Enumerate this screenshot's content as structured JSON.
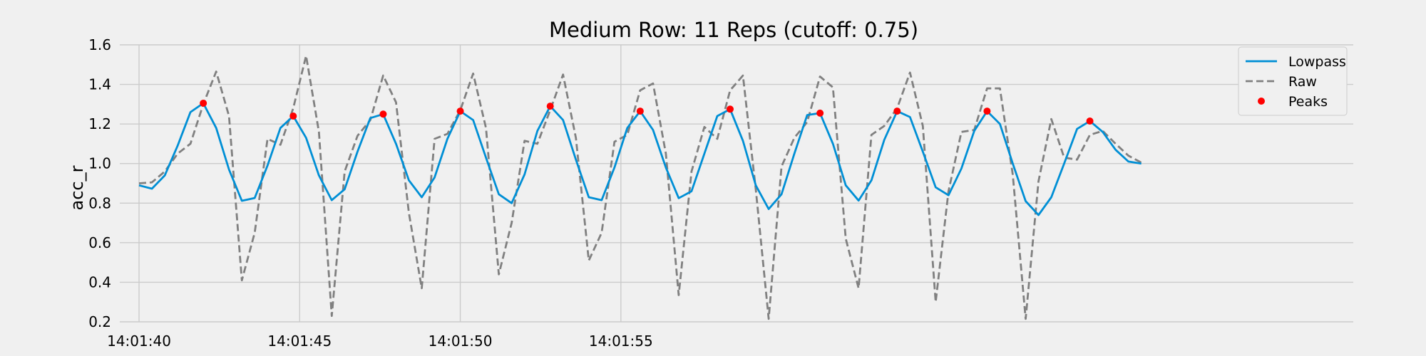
{
  "chart_data": {
    "type": "line",
    "title": "Medium Row: 11 Reps (cutoff: 0.75)",
    "xlabel": "",
    "ylabel": "acc_r",
    "x_ticks": [
      "14:01:40",
      "14:01:45",
      "14:01:50",
      "14:01:55"
    ],
    "y_ticks": [
      "0.2",
      "0.4",
      "0.6",
      "0.8",
      "1.0",
      "1.2",
      "1.4",
      "1.6"
    ],
    "xlim": [
      -0.6,
      37.8
    ],
    "ylim": [
      0.2,
      1.6
    ],
    "x_unit": "seconds after 14:01:40",
    "grid": true,
    "legend_position": "upper-right",
    "colors": {
      "background": "#f0f0f0",
      "grid": "#cbcbcb",
      "lowpass": "#008fd5",
      "raw": "#808080",
      "peaks": "#ff0000"
    },
    "series": [
      {
        "name": "Lowpass",
        "style": "solid",
        "points": [
          [
            0.0,
            0.89
          ],
          [
            0.4,
            0.873
          ],
          [
            0.8,
            0.94
          ],
          [
            1.2,
            1.09
          ],
          [
            1.6,
            1.26
          ],
          [
            2.0,
            1.305
          ],
          [
            2.4,
            1.18
          ],
          [
            2.8,
            0.97
          ],
          [
            3.2,
            0.812
          ],
          [
            3.6,
            0.826
          ],
          [
            4.0,
            0.99
          ],
          [
            4.4,
            1.18
          ],
          [
            4.8,
            1.24
          ],
          [
            5.2,
            1.13
          ],
          [
            5.6,
            0.94
          ],
          [
            6.0,
            0.815
          ],
          [
            6.4,
            0.87
          ],
          [
            6.8,
            1.06
          ],
          [
            7.2,
            1.23
          ],
          [
            7.6,
            1.25
          ],
          [
            8.0,
            1.1
          ],
          [
            8.4,
            0.915
          ],
          [
            8.8,
            0.83
          ],
          [
            9.2,
            0.93
          ],
          [
            9.6,
            1.125
          ],
          [
            10.0,
            1.265
          ],
          [
            10.4,
            1.22
          ],
          [
            10.8,
            1.03
          ],
          [
            11.2,
            0.845
          ],
          [
            11.6,
            0.8
          ],
          [
            12.0,
            0.945
          ],
          [
            12.4,
            1.165
          ],
          [
            12.8,
            1.29
          ],
          [
            13.2,
            1.22
          ],
          [
            13.6,
            1.02
          ],
          [
            14.0,
            0.83
          ],
          [
            14.4,
            0.815
          ],
          [
            14.8,
            0.98
          ],
          [
            15.2,
            1.18
          ],
          [
            15.6,
            1.265
          ],
          [
            16.0,
            1.17
          ],
          [
            16.4,
            0.98
          ],
          [
            16.8,
            0.825
          ],
          [
            17.2,
            0.86
          ],
          [
            17.6,
            1.05
          ],
          [
            18.0,
            1.24
          ],
          [
            18.4,
            1.275
          ],
          [
            18.8,
            1.115
          ],
          [
            19.2,
            0.89
          ],
          [
            19.6,
            0.77
          ],
          [
            20.0,
            0.845
          ],
          [
            20.4,
            1.05
          ],
          [
            20.8,
            1.245
          ],
          [
            21.2,
            1.255
          ],
          [
            21.6,
            1.1
          ],
          [
            22.0,
            0.89
          ],
          [
            22.4,
            0.813
          ],
          [
            22.8,
            0.915
          ],
          [
            23.2,
            1.12
          ],
          [
            23.6,
            1.265
          ],
          [
            24.0,
            1.235
          ],
          [
            24.4,
            1.06
          ],
          [
            24.8,
            0.88
          ],
          [
            25.2,
            0.84
          ],
          [
            25.6,
            0.975
          ],
          [
            26.0,
            1.165
          ],
          [
            26.4,
            1.265
          ],
          [
            26.8,
            1.2
          ],
          [
            27.2,
            1.0
          ],
          [
            27.6,
            0.81
          ],
          [
            28.0,
            0.74
          ],
          [
            28.4,
            0.83
          ],
          [
            28.8,
            1.0
          ],
          [
            29.2,
            1.175
          ],
          [
            29.6,
            1.215
          ],
          [
            30.0,
            1.16
          ],
          [
            30.4,
            1.07
          ],
          [
            30.8,
            1.01
          ],
          [
            31.2,
            1.0
          ]
        ]
      },
      {
        "name": "Raw",
        "style": "dashed",
        "points": [
          [
            0.0,
            0.9
          ],
          [
            0.4,
            0.905
          ],
          [
            0.8,
            0.96
          ],
          [
            1.2,
            1.05
          ],
          [
            1.6,
            1.1
          ],
          [
            2.0,
            1.3
          ],
          [
            2.4,
            1.465
          ],
          [
            2.8,
            1.24
          ],
          [
            3.2,
            0.41
          ],
          [
            3.6,
            0.65
          ],
          [
            4.0,
            1.125
          ],
          [
            4.4,
            1.095
          ],
          [
            4.8,
            1.28
          ],
          [
            5.2,
            1.545
          ],
          [
            5.6,
            1.16
          ],
          [
            6.0,
            0.23
          ],
          [
            6.4,
            0.96
          ],
          [
            6.8,
            1.14
          ],
          [
            7.2,
            1.22
          ],
          [
            7.6,
            1.445
          ],
          [
            8.0,
            1.31
          ],
          [
            8.4,
            0.75
          ],
          [
            8.8,
            0.37
          ],
          [
            9.2,
            1.125
          ],
          [
            9.6,
            1.15
          ],
          [
            10.0,
            1.27
          ],
          [
            10.4,
            1.455
          ],
          [
            10.8,
            1.18
          ],
          [
            11.2,
            0.44
          ],
          [
            11.6,
            0.7
          ],
          [
            12.0,
            1.115
          ],
          [
            12.4,
            1.1
          ],
          [
            12.8,
            1.27
          ],
          [
            13.2,
            1.45
          ],
          [
            13.6,
            1.13
          ],
          [
            14.0,
            0.51
          ],
          [
            14.4,
            0.65
          ],
          [
            14.8,
            1.11
          ],
          [
            15.2,
            1.145
          ],
          [
            15.6,
            1.37
          ],
          [
            16.0,
            1.405
          ],
          [
            16.4,
            1.05
          ],
          [
            16.8,
            0.335
          ],
          [
            17.2,
            0.96
          ],
          [
            17.6,
            1.185
          ],
          [
            18.0,
            1.125
          ],
          [
            18.4,
            1.37
          ],
          [
            18.8,
            1.445
          ],
          [
            19.2,
            0.87
          ],
          [
            19.6,
            0.215
          ],
          [
            20.0,
            0.985
          ],
          [
            20.4,
            1.13
          ],
          [
            20.8,
            1.21
          ],
          [
            21.2,
            1.44
          ],
          [
            21.6,
            1.385
          ],
          [
            22.0,
            0.62
          ],
          [
            22.4,
            0.37
          ],
          [
            22.8,
            1.145
          ],
          [
            23.2,
            1.19
          ],
          [
            23.6,
            1.28
          ],
          [
            24.0,
            1.46
          ],
          [
            24.4,
            1.19
          ],
          [
            24.8,
            0.3
          ],
          [
            25.2,
            0.86
          ],
          [
            25.6,
            1.16
          ],
          [
            26.0,
            1.17
          ],
          [
            26.4,
            1.38
          ],
          [
            26.8,
            1.38
          ],
          [
            27.2,
            0.945
          ],
          [
            27.6,
            0.215
          ],
          [
            28.0,
            0.91
          ],
          [
            28.4,
            1.225
          ],
          [
            28.8,
            1.03
          ],
          [
            29.2,
            1.02
          ],
          [
            29.6,
            1.145
          ],
          [
            30.0,
            1.165
          ],
          [
            30.4,
            1.1
          ],
          [
            30.8,
            1.04
          ],
          [
            31.2,
            1.005
          ]
        ]
      },
      {
        "name": "Peaks",
        "style": "markers",
        "points": [
          [
            2.0,
            1.305
          ],
          [
            4.8,
            1.24
          ],
          [
            7.6,
            1.25
          ],
          [
            10.0,
            1.265
          ],
          [
            12.8,
            1.29
          ],
          [
            15.6,
            1.265
          ],
          [
            18.4,
            1.275
          ],
          [
            21.2,
            1.255
          ],
          [
            23.6,
            1.265
          ],
          [
            26.4,
            1.265
          ],
          [
            29.6,
            1.215
          ]
        ]
      }
    ]
  }
}
